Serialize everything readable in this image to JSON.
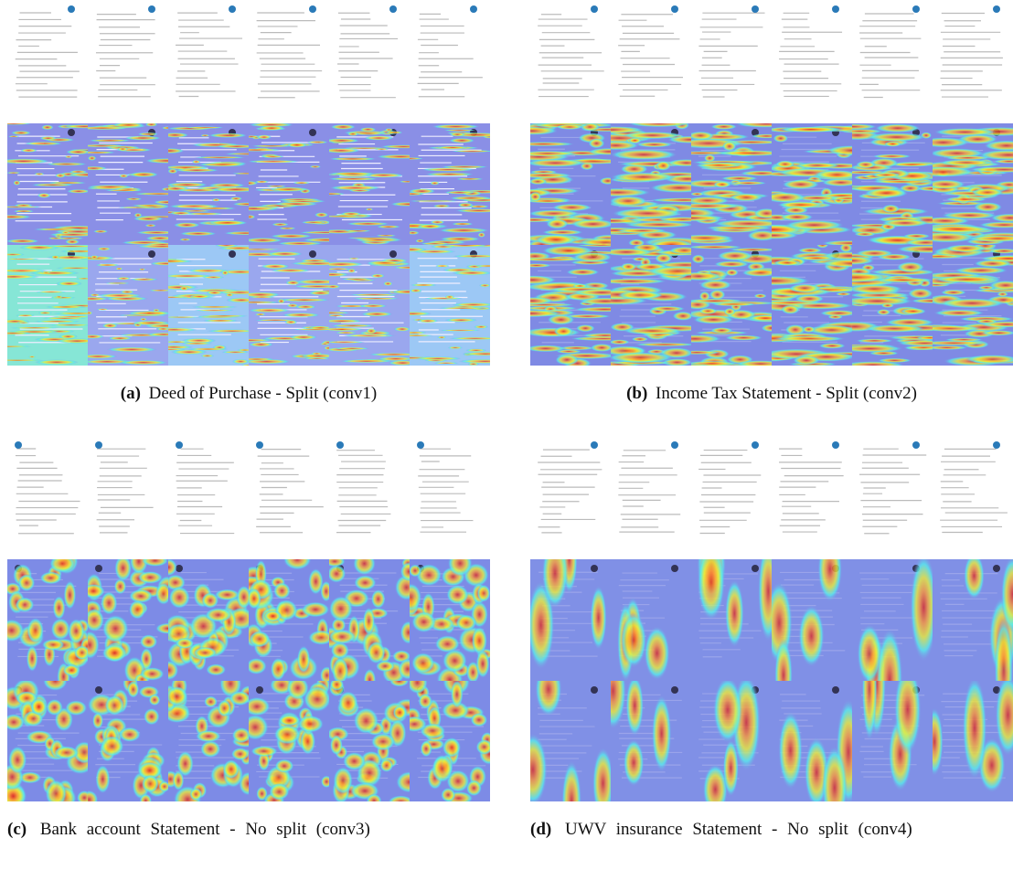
{
  "figure": {
    "panels": [
      {
        "label": "(a)",
        "caption": "Deed of Purchase - Split (conv1)"
      },
      {
        "label": "(b)",
        "caption": "Income Tax Statement - Split (conv2)"
      },
      {
        "label": "(c)",
        "caption": "Bank account Statement - No split (conv3)"
      },
      {
        "label": "(d)",
        "caption": "UWV insurance Statement - No split (conv4)"
      }
    ]
  }
}
